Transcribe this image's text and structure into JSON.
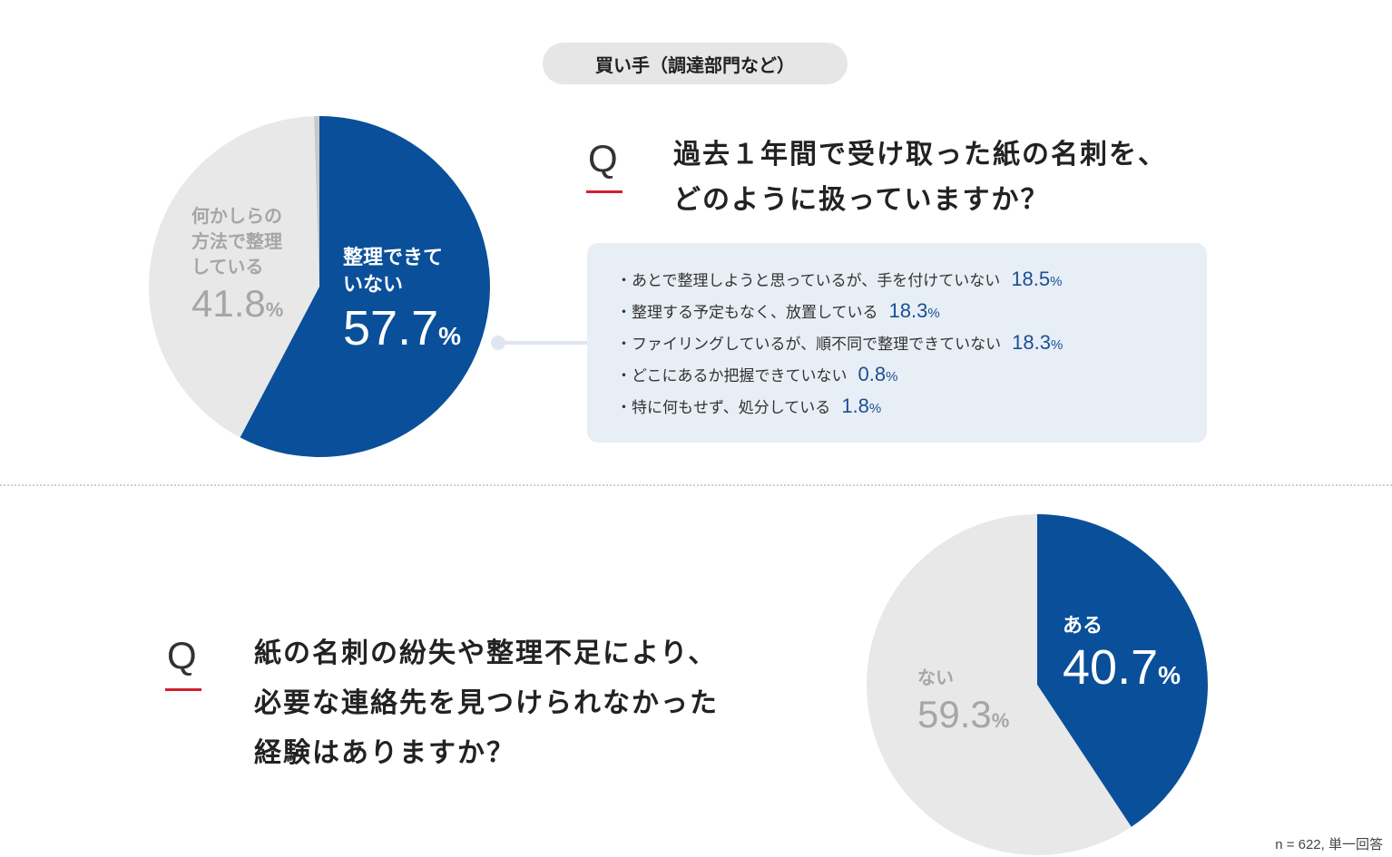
{
  "header": {
    "pill": "買い手（調達部門など）"
  },
  "q1": {
    "mark": "Q",
    "lines": [
      "過去１年間で受け取った紙の名刺を、",
      "どのように扱っていますか？"
    ],
    "breakdown": [
      {
        "label": "・あとで整理しようと思っているが、手を付けていない",
        "value": "18.5",
        "unit": "%"
      },
      {
        "label": "・整理する予定もなく、放置している",
        "value": "18.3",
        "unit": "%"
      },
      {
        "label": "・ファイリングしているが、順不同で整理できていない",
        "value": "18.3",
        "unit": "%"
      },
      {
        "label": "・どこにあるか把握できていない",
        "value": "0.8",
        "unit": "%"
      },
      {
        "label": "・特に何もせず、処分している",
        "value": "1.8",
        "unit": "%"
      }
    ]
  },
  "q2": {
    "mark": "Q",
    "lines": [
      "紙の名刺の紛失や整理不足により、",
      "必要な連絡先を見つけられなかった",
      "経験はありますか？"
    ]
  },
  "colors": {
    "primary": "#0a4f9a",
    "light": "#e8e8e8",
    "muted": "#a6a6a6",
    "accent": "#d0202e",
    "box": "#e8eef5",
    "divider": "#d0d0d0"
  },
  "chart_data": [
    {
      "type": "pie",
      "slices": [
        {
          "label_lines": [
            "整理できて",
            "いない"
          ],
          "value": 57.7,
          "value_text": "57.7",
          "unit": "%",
          "color": "#0a4f9a"
        },
        {
          "label_lines": [
            "何かしらの",
            "方法で整理",
            "している"
          ],
          "value": 41.8,
          "value_text": "41.8",
          "unit": "%",
          "color": "#e8e8e8"
        },
        {
          "label_lines": [],
          "value": 0.5,
          "value_text": "",
          "unit": "",
          "color": "#c8c8c8"
        }
      ]
    },
    {
      "type": "pie",
      "slices": [
        {
          "label_lines": [
            "ある"
          ],
          "value": 40.7,
          "value_text": "40.7",
          "unit": "%",
          "color": "#0a4f9a"
        },
        {
          "label_lines": [
            "ない"
          ],
          "value": 59.3,
          "value_text": "59.3",
          "unit": "%",
          "color": "#e8e8e8"
        }
      ]
    }
  ],
  "footnote": "n = 622, 単一回答"
}
